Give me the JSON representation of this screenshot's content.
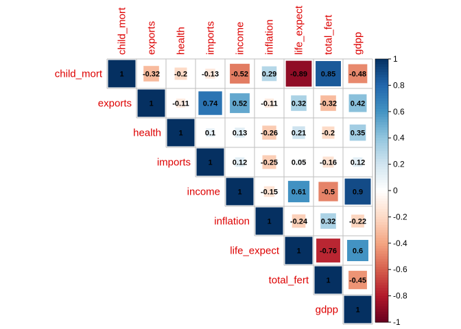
{
  "chart_data": {
    "type": "heatmap",
    "layout": "upper-triangle correlation matrix",
    "variables": [
      "child_mort",
      "exports",
      "health",
      "imports",
      "income",
      "inflation",
      "life_expect",
      "total_fert",
      "gdpp"
    ],
    "matrix": [
      [
        1,
        -0.32,
        -0.2,
        -0.13,
        -0.52,
        0.29,
        -0.89,
        0.85,
        -0.48
      ],
      [
        -0.32,
        1,
        -0.11,
        0.74,
        0.52,
        -0.11,
        0.32,
        -0.32,
        0.42
      ],
      [
        -0.2,
        -0.11,
        1,
        0.1,
        0.13,
        -0.26,
        0.21,
        -0.2,
        0.35
      ],
      [
        -0.13,
        0.74,
        0.1,
        1,
        0.12,
        -0.25,
        0.05,
        -0.16,
        0.12
      ],
      [
        -0.52,
        0.52,
        0.13,
        0.12,
        1,
        -0.15,
        0.61,
        -0.5,
        0.9
      ],
      [
        0.29,
        -0.11,
        -0.26,
        -0.25,
        -0.15,
        1,
        -0.24,
        0.32,
        -0.22
      ],
      [
        -0.89,
        0.32,
        0.21,
        0.05,
        0.61,
        -0.24,
        1,
        -0.76,
        0.6
      ],
      [
        0.85,
        -0.32,
        -0.2,
        -0.16,
        -0.5,
        0.32,
        -0.76,
        1,
        -0.45
      ],
      [
        -0.48,
        0.42,
        0.35,
        0.12,
        0.9,
        -0.22,
        0.6,
        -0.45,
        1
      ]
    ],
    "colorbar": {
      "range": [
        -1,
        1
      ],
      "ticks": [
        1,
        0.8,
        0.6,
        0.4,
        0.2,
        0,
        -0.2,
        -0.4,
        -0.6,
        -0.8,
        -1
      ],
      "colors": {
        "negative": "#67001f",
        "neutral": "#ffffff",
        "positive": "#053061"
      }
    },
    "label_color": "#dd0000",
    "grid_color": "#bebebe"
  }
}
